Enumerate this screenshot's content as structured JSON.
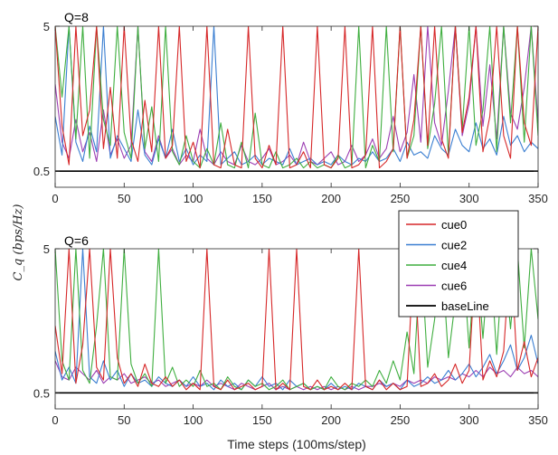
{
  "chart_data": {
    "type": "line",
    "xlabel": "Time steps (100ms/step)",
    "ylabel": "C_q  (bps/Hz)",
    "xlim": [
      0,
      350
    ],
    "xticks": [
      0,
      50,
      100,
      150,
      200,
      250,
      300,
      350
    ],
    "legend": {
      "placement": "right-middle",
      "entries": [
        "cue0",
        "cue2",
        "cue4",
        "cue6",
        "baseLine"
      ]
    },
    "series_style": [
      {
        "name": "cue0",
        "color": "#d62728"
      },
      {
        "name": "cue2",
        "color": "#3a7ed1"
      },
      {
        "name": "cue4",
        "color": "#3fae3f"
      },
      {
        "name": "cue6",
        "color": "#9c3fb3"
      },
      {
        "name": "baseLine",
        "color": "#000000"
      }
    ],
    "panels": [
      {
        "title": "Q=8",
        "ylim": [
          0,
          5
        ],
        "yticks": [
          0.5,
          5
        ],
        "ytick_labels": [
          "0.5",
          "5"
        ],
        "baseline": 0.5,
        "series": [
          {
            "name": "cue0",
            "x_step": 5,
            "values": [
              5,
              1.9,
              0.7,
              5,
              1.6,
              2.4,
              5,
              1.2,
              3.1,
              0.9,
              5,
              1.5,
              0.8,
              2.7,
              1.1,
              5,
              0.9,
              1.3,
              5,
              0.8,
              1.4,
              0.6,
              5,
              0.7,
              0.6,
              1.8,
              0.7,
              0.6,
              5,
              0.9,
              0.6,
              1.3,
              0.7,
              5,
              0.6,
              0.7,
              1.1,
              0.6,
              5,
              0.7,
              0.6,
              0.9,
              5,
              0.6,
              0.7,
              1.0,
              5,
              0.6,
              0.8,
              1.2,
              5,
              0.9,
              2.1,
              5,
              1.3,
              5,
              1.5,
              0.9,
              5,
              1.7,
              2.8,
              5,
              1.1,
              2.2,
              5,
              1.6,
              0.9,
              5,
              2.0,
              1.3,
              5
            ]
          },
          {
            "name": "cue2",
            "x_step": 5,
            "values": [
              2.2,
              1.0,
              5,
              1.4,
              0.8,
              1.9,
              1.1,
              5,
              0.9,
              1.6,
              1.2,
              0.8,
              2.4,
              1.0,
              0.7,
              1.5,
              0.9,
              1.8,
              0.8,
              1.2,
              0.7,
              1.0,
              0.8,
              5,
              0.7,
              0.9,
              1.1,
              0.7,
              0.8,
              1.0,
              0.7,
              0.9,
              0.8,
              0.7,
              1.2,
              0.7,
              0.8,
              0.9,
              0.7,
              0.8,
              0.7,
              1.0,
              0.8,
              0.7,
              0.9,
              0.8,
              1.1,
              0.8,
              0.9,
              1.2,
              0.8,
              1.4,
              1.0,
              1.1,
              0.9,
              1.6,
              1.2,
              1.0,
              1.8,
              1.3,
              1.1,
              2.0,
              1.2,
              1.5,
              1.0,
              2.2,
              1.3,
              1.6,
              1.1,
              1.4,
              1.2
            ]
          },
          {
            "name": "cue4",
            "x_step": 5,
            "values": [
              5,
              2.8,
              5,
              1.5,
              5,
              0.9,
              5,
              2.1,
              1.3,
              5,
              1.7,
              0.9,
              5,
              1.2,
              2.5,
              0.8,
              5,
              1.1,
              0.7,
              1.6,
              0.8,
              0.6,
              1.2,
              0.7,
              2.0,
              0.7,
              0.6,
              1.4,
              0.6,
              2.3,
              0.7,
              0.6,
              1.1,
              0.6,
              0.7,
              0.9,
              0.6,
              0.8,
              0.6,
              0.7,
              0.6,
              1.0,
              0.6,
              0.7,
              5,
              0.6,
              1.3,
              0.8,
              5,
              1.1,
              5,
              0.9,
              1.6,
              5,
              1.2,
              2.6,
              5,
              1.0,
              5,
              1.8,
              5,
              1.3,
              2.4,
              5,
              1.1,
              5,
              2.0,
              5,
              1.4,
              5,
              1.6
            ]
          },
          {
            "name": "cue6",
            "x_step": 5,
            "values": [
              3.2,
              1.4,
              0.9,
              2.1,
              1.1,
              1.7,
              0.8,
              2.4,
              1.0,
              1.5,
              0.9,
              1.3,
              5,
              1.1,
              0.8,
              1.6,
              0.9,
              1.2,
              0.7,
              1.0,
              0.8,
              1.8,
              0.9,
              0.7,
              1.1,
              0.8,
              0.7,
              1.3,
              0.8,
              0.7,
              0.9,
              1.2,
              0.7,
              0.8,
              1.0,
              0.7,
              1.4,
              0.8,
              0.7,
              0.9,
              1.1,
              0.7,
              0.8,
              1.3,
              0.8,
              1.0,
              1.5,
              0.9,
              1.2,
              2.2,
              1.1,
              1.7,
              3.5,
              1.4,
              5,
              2.0,
              1.3,
              3.0,
              5,
              1.6,
              2.6,
              5,
              1.9,
              3.8,
              1.5,
              5,
              2.3,
              1.8,
              3.1,
              5,
              2.0
            ]
          },
          {
            "name": "baseLine",
            "x": [
              0,
              350
            ],
            "values": [
              0.5,
              0.5
            ]
          }
        ]
      },
      {
        "title": "Q=6",
        "ylim": [
          0,
          5
        ],
        "yticks": [
          0.5,
          5
        ],
        "ytick_labels": [
          "0.5",
          "5"
        ],
        "baseline": 0.5,
        "series": [
          {
            "name": "cue0",
            "x_step": 5,
            "values": [
              2.6,
              1.1,
              5,
              0.8,
              2.0,
              5,
              1.3,
              0.9,
              5,
              1.6,
              0.8,
              1.1,
              0.7,
              1.4,
              0.8,
              0.7,
              1.0,
              0.7,
              0.9,
              0.6,
              0.8,
              0.6,
              5,
              0.7,
              0.6,
              0.9,
              0.6,
              0.7,
              0.8,
              0.6,
              0.7,
              5,
              0.6,
              0.8,
              0.6,
              5,
              0.7,
              0.6,
              0.9,
              0.6,
              0.7,
              0.6,
              0.8,
              0.6,
              5,
              0.7,
              0.6,
              0.9,
              0.6,
              0.8,
              0.6,
              0.7,
              5,
              0.7,
              0.8,
              1.1,
              0.7,
              0.9,
              1.4,
              0.8,
              1.2,
              5,
              0.9,
              1.5,
              1.0,
              1.8,
              5,
              1.2,
              2.1,
              1.0,
              1.6
            ]
          },
          {
            "name": "cue2",
            "x_step": 5,
            "values": [
              1.8,
              0.9,
              1.3,
              0.8,
              5,
              1.0,
              0.8,
              1.5,
              0.9,
              1.2,
              0.7,
              1.1,
              0.8,
              0.9,
              0.7,
              1.0,
              0.8,
              0.7,
              0.9,
              0.7,
              1.0,
              0.7,
              0.8,
              0.6,
              0.9,
              0.7,
              0.8,
              0.6,
              0.9,
              0.7,
              1.0,
              0.7,
              0.8,
              0.6,
              0.9,
              0.7,
              0.8,
              0.6,
              0.7,
              0.6,
              0.8,
              0.6,
              0.7,
              0.6,
              0.8,
              0.7,
              0.6,
              0.9,
              0.7,
              0.8,
              0.6,
              0.9,
              0.7,
              0.8,
              1.0,
              0.8,
              0.9,
              1.2,
              0.9,
              1.1,
              1.4,
              1.0,
              1.3,
              1.7,
              1.1,
              1.5,
              2.0,
              1.2,
              1.6,
              2.3,
              1.4
            ]
          },
          {
            "name": "cue4",
            "x_step": 5,
            "values": [
              5,
              1.5,
              0.9,
              5,
              1.2,
              0.8,
              2.6,
              5,
              1.0,
              0.9,
              5,
              1.4,
              0.8,
              1.1,
              0.7,
              5,
              0.8,
              1.3,
              0.7,
              0.9,
              0.7,
              1.2,
              0.7,
              0.8,
              0.6,
              1.0,
              0.7,
              0.6,
              0.9,
              0.7,
              0.8,
              0.6,
              0.7,
              0.9,
              0.6,
              0.7,
              0.8,
              0.6,
              0.7,
              0.6,
              1.0,
              0.7,
              0.6,
              0.8,
              0.7,
              0.9,
              0.7,
              1.2,
              0.8,
              1.5,
              0.9,
              2.4,
              1.1,
              5,
              1.3,
              2.8,
              5,
              1.6,
              3.4,
              5,
              1.9,
              5,
              2.2,
              5,
              1.7,
              5,
              2.5,
              5,
              1.9,
              5,
              2.8
            ]
          },
          {
            "name": "cue6",
            "x_step": 5,
            "values": [
              1.5,
              1.0,
              0.9,
              1.3,
              1.1,
              0.9,
              1.2,
              0.8,
              1.0,
              0.9,
              1.1,
              0.8,
              0.9,
              1.0,
              0.8,
              0.9,
              0.7,
              0.8,
              0.9,
              0.7,
              0.8,
              0.7,
              0.9,
              0.7,
              0.8,
              0.7,
              0.6,
              0.8,
              0.7,
              0.6,
              0.7,
              0.8,
              0.6,
              0.7,
              0.6,
              0.7,
              0.6,
              0.7,
              0.6,
              0.7,
              0.6,
              0.7,
              0.6,
              0.7,
              0.6,
              0.7,
              0.7,
              0.8,
              0.7,
              0.8,
              0.7,
              0.9,
              0.8,
              0.9,
              0.8,
              1.0,
              0.9,
              1.0,
              0.9,
              1.1,
              1.0,
              1.2,
              1.0,
              1.3,
              1.1,
              1.2,
              1.0,
              1.3,
              1.1,
              1.2,
              1.0
            ]
          },
          {
            "name": "baseLine",
            "x": [
              0,
              350
            ],
            "values": [
              0.5,
              0.5
            ]
          }
        ]
      }
    ]
  }
}
